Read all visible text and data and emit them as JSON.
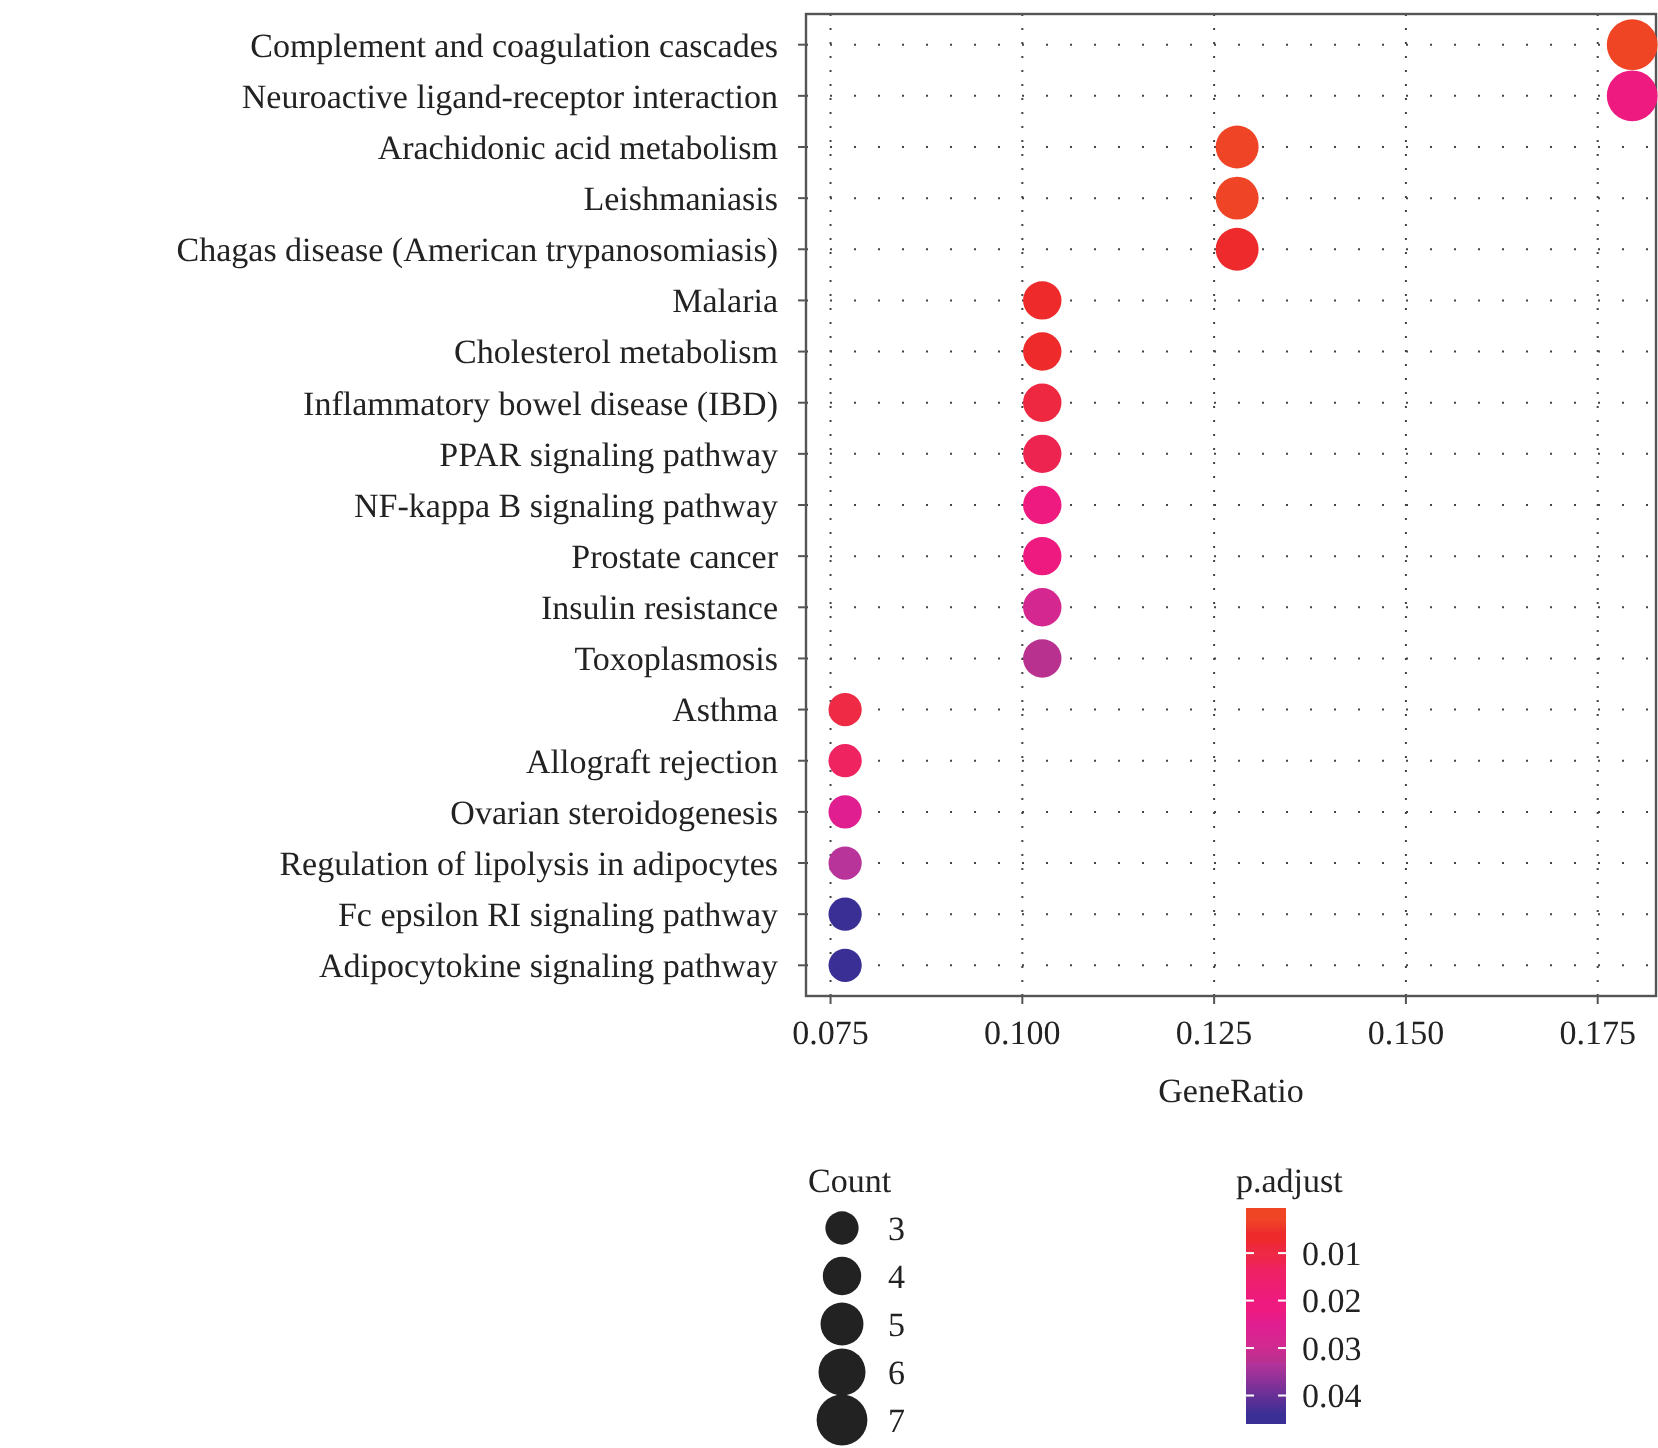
{
  "chart_data": {
    "type": "bubble",
    "orientation": "horizontal",
    "categories": [
      "Complement and coagulation cascades",
      "Neuroactive ligand-receptor interaction",
      "Arachidonic acid metabolism",
      "Leishmaniasis",
      "Chagas disease (American trypanosomiasis)",
      "Malaria",
      "Cholesterol metabolism",
      "Inflammatory bowel disease (IBD)",
      "PPAR signaling pathway",
      "NF-kappa B signaling pathway",
      "Prostate cancer",
      "Insulin resistance",
      "Toxoplasmosis",
      "Asthma",
      "Allograft rejection",
      "Ovarian steroidogenesis",
      "Regulation of lipolysis in adipocytes",
      "Fc epsilon RI signaling pathway",
      "Adipocytokine signaling pathway"
    ],
    "values": [
      0.1795,
      0.1795,
      0.128,
      0.128,
      0.128,
      0.1026,
      0.1026,
      0.1026,
      0.1026,
      0.1026,
      0.1026,
      0.1026,
      0.1026,
      0.0769,
      0.0769,
      0.0769,
      0.0769,
      0.0769,
      0.0769
    ],
    "sizes": [
      7,
      7,
      5,
      5,
      5,
      4,
      4,
      4,
      4,
      4,
      4,
      4,
      4,
      3,
      3,
      3,
      3,
      3,
      3
    ],
    "cvalues": [
      0.002,
      0.022,
      0.003,
      0.003,
      0.006,
      0.007,
      0.007,
      0.009,
      0.012,
      0.02,
      0.022,
      0.029,
      0.033,
      0.01,
      0.013,
      0.025,
      0.033,
      0.044,
      0.044
    ],
    "colors": [
      "#ef4524",
      "#ee1a80",
      "#ef4526",
      "#ef4526",
      "#ee2a2c",
      "#ee2a2a",
      "#ee2a2a",
      "#ee2840",
      "#ee2450",
      "#ee1a80",
      "#ee1a80",
      "#d42890",
      "#b8318f",
      "#ee2a45",
      "#ee2360",
      "#e01e90",
      "#b8339a",
      "#3a2f95",
      "#3a2f95"
    ],
    "xlim": [
      0.0718,
      0.1826
    ],
    "xticks": [
      {
        "value": 0.075,
        "label": "0.075"
      },
      {
        "value": 0.1,
        "label": "0.100"
      },
      {
        "value": 0.125,
        "label": "0.125"
      },
      {
        "value": 0.15,
        "label": "0.150"
      },
      {
        "value": 0.175,
        "label": "0.175"
      }
    ],
    "xlabel": "GeneRatio",
    "legend_title": "Count",
    "size_legend": [
      3,
      4,
      5,
      6,
      7
    ],
    "clabel": "p.adjust",
    "clim": [
      0.0005,
      0.046
    ],
    "cticks": [
      0.01,
      0.02,
      0.03,
      0.04
    ],
    "grid": true
  }
}
